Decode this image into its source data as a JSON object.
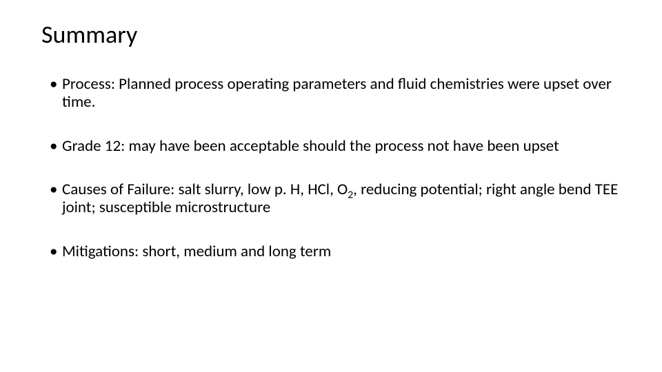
{
  "slide": {
    "title": "Summary",
    "title_fontsize": 36,
    "body_fontsize": 23,
    "background_color": "#ffffff",
    "text_color": "#000000",
    "font_family": "Calibri",
    "bullets": [
      {
        "text": "Process: Planned process operating parameters and fluid chemistries were upset over time."
      },
      {
        "text": "Grade 12: may have been acceptable should the process not have been upset"
      },
      {
        "prefix": "Causes of Failure: salt slurry, low p. H, HCl, O",
        "sub": "2",
        "suffix": ", reducing potential; right angle bend TEE joint; susceptible microstructure"
      },
      {
        "text": "Mitigations: short, medium and long term"
      }
    ]
  }
}
